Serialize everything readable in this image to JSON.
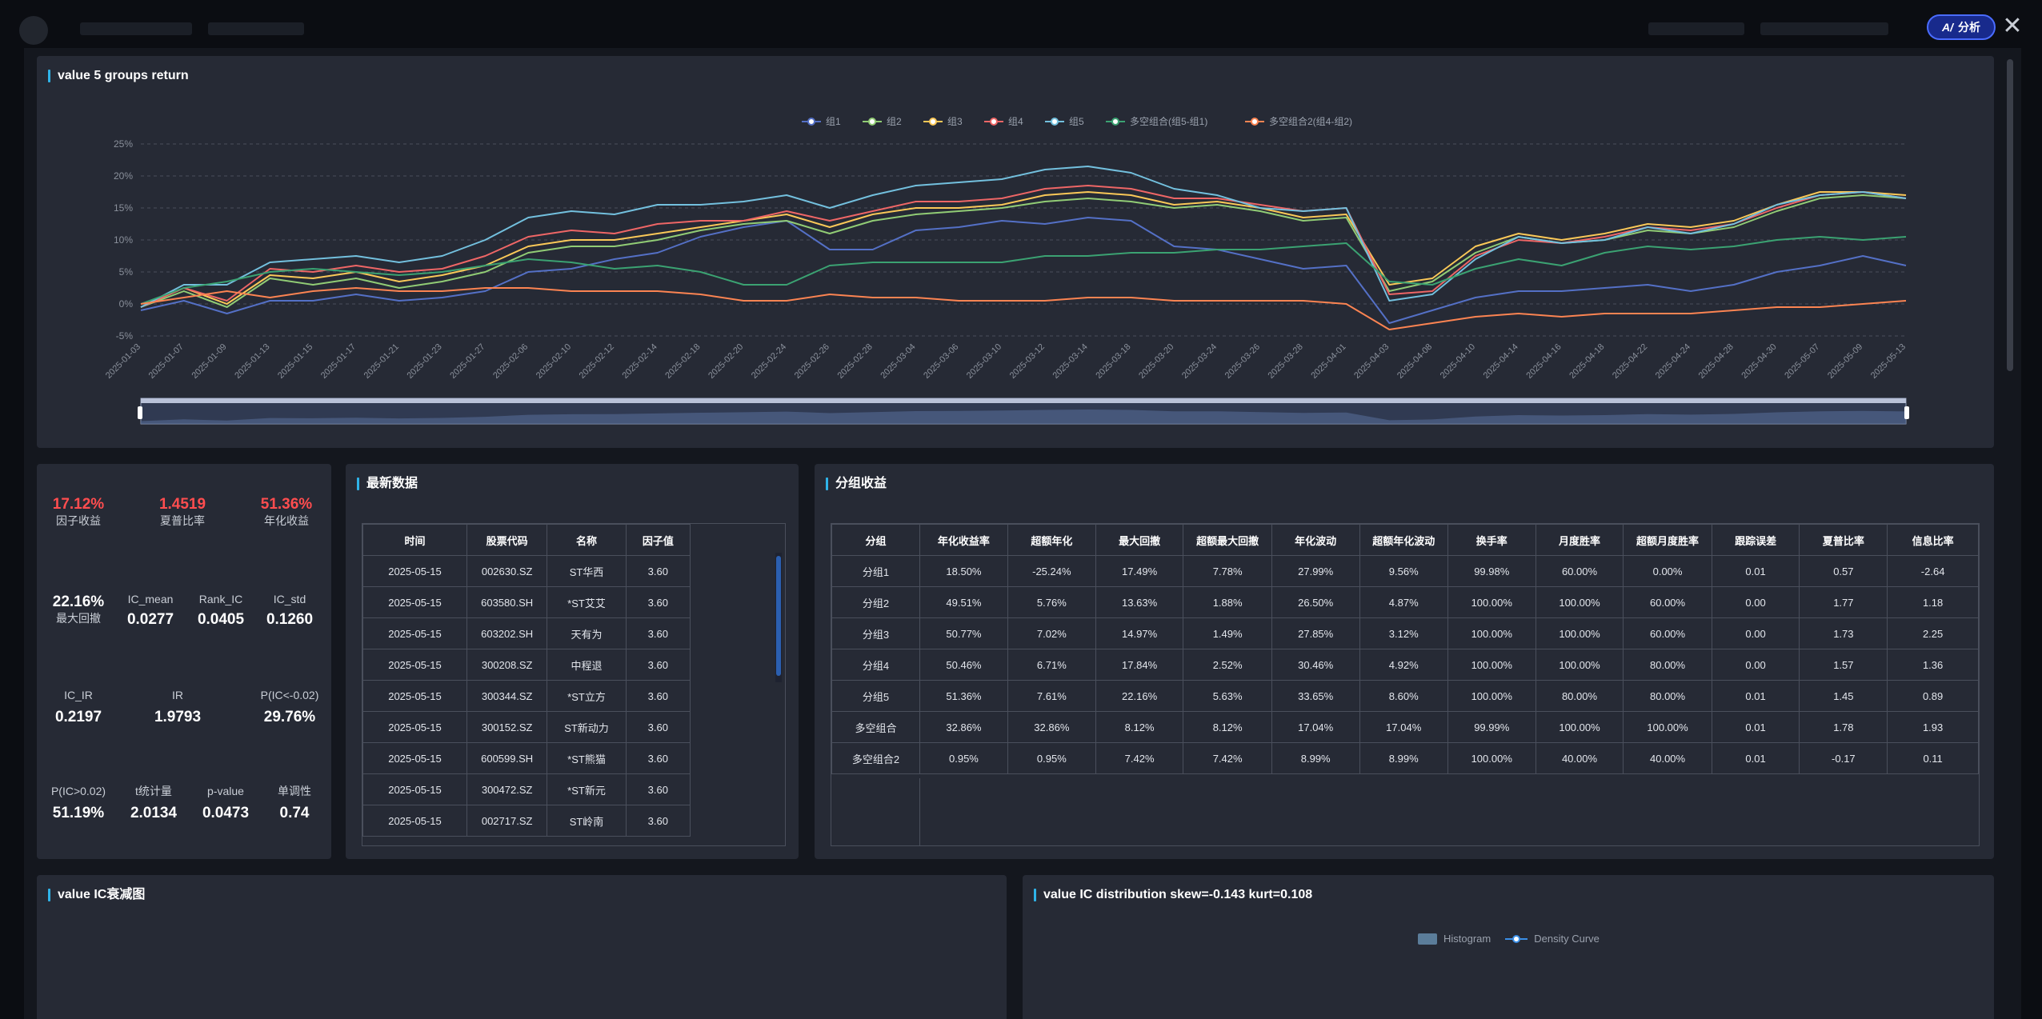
{
  "panels": {
    "chart_title": "value 5 groups return",
    "latest_title": "最新数据",
    "group_title": "分组收益",
    "decay_title": "value IC衰减图",
    "dist_title": "value IC distribution skew=-0.143 kurt=0.108"
  },
  "toolbar": {
    "ai_label": "分析",
    "ai_icon": "ai-icon",
    "close_icon": "close-icon"
  },
  "colors": {
    "accent": "#2fb3e8",
    "negative_stat": "#ff4d4f",
    "ai_button": "#182a8c"
  },
  "stats": {
    "top": [
      {
        "value": "17.12%",
        "label": "因子收益"
      },
      {
        "value": "1.4519",
        "label": "夏普比率"
      },
      {
        "value": "51.36%",
        "label": "年化收益"
      }
    ],
    "drawdown": {
      "value": "22.16%",
      "label": "最大回撤"
    },
    "row2": [
      {
        "label": "IC_mean",
        "value": "0.0277"
      },
      {
        "label": "Rank_IC",
        "value": "0.0405"
      },
      {
        "label": "IC_std",
        "value": "0.1260"
      }
    ],
    "row3": [
      {
        "label": "IC_IR",
        "value": "0.2197"
      },
      {
        "label": "IR",
        "value": "1.9793"
      },
      {
        "label": "P(IC<-0.02)",
        "value": "29.76%"
      }
    ],
    "row4": [
      {
        "label": "P(IC>0.02)",
        "value": "51.19%"
      },
      {
        "label": "t统计量",
        "value": "2.0134"
      },
      {
        "label": "p-value",
        "value": "0.0473"
      },
      {
        "label": "单调性",
        "value": "0.74"
      }
    ]
  },
  "latest": {
    "headers": [
      "时间",
      "股票代码",
      "名称",
      "因子值"
    ],
    "rows": [
      [
        "2025-05-15",
        "002630.SZ",
        "ST华西",
        "3.60"
      ],
      [
        "2025-05-15",
        "603580.SH",
        "*ST艾艾",
        "3.60"
      ],
      [
        "2025-05-15",
        "603202.SH",
        "天有为",
        "3.60"
      ],
      [
        "2025-05-15",
        "300208.SZ",
        "中程退",
        "3.60"
      ],
      [
        "2025-05-15",
        "300344.SZ",
        "*ST立方",
        "3.60"
      ],
      [
        "2025-05-15",
        "300152.SZ",
        "ST新动力",
        "3.60"
      ],
      [
        "2025-05-15",
        "600599.SH",
        "*ST熊猫",
        "3.60"
      ],
      [
        "2025-05-15",
        "300472.SZ",
        "*ST新元",
        "3.60"
      ],
      [
        "2025-05-15",
        "002717.SZ",
        "ST岭南",
        "3.60"
      ]
    ]
  },
  "groups": {
    "headers": [
      "分组",
      "年化收益率",
      "超额年化",
      "最大回撤",
      "超额最大回撤",
      "年化波动",
      "超额年化波动",
      "换手率",
      "月度胜率",
      "超额月度胜率",
      "跟踪误差",
      "夏普比率",
      "信息比率"
    ],
    "rows": [
      [
        "分组1",
        "18.50%",
        "-25.24%",
        "17.49%",
        "7.78%",
        "27.99%",
        "9.56%",
        "99.98%",
        "60.00%",
        "0.00%",
        "0.01",
        "0.57",
        "-2.64"
      ],
      [
        "分组2",
        "49.51%",
        "5.76%",
        "13.63%",
        "1.88%",
        "26.50%",
        "4.87%",
        "100.00%",
        "100.00%",
        "60.00%",
        "0.00",
        "1.77",
        "1.18"
      ],
      [
        "分组3",
        "50.77%",
        "7.02%",
        "14.97%",
        "1.49%",
        "27.85%",
        "3.12%",
        "100.00%",
        "100.00%",
        "60.00%",
        "0.00",
        "1.73",
        "2.25"
      ],
      [
        "分组4",
        "50.46%",
        "6.71%",
        "17.84%",
        "2.52%",
        "30.46%",
        "4.92%",
        "100.00%",
        "100.00%",
        "80.00%",
        "0.00",
        "1.57",
        "1.36"
      ],
      [
        "分组5",
        "51.36%",
        "7.61%",
        "22.16%",
        "5.63%",
        "33.65%",
        "8.60%",
        "100.00%",
        "80.00%",
        "80.00%",
        "0.01",
        "1.45",
        "0.89"
      ],
      [
        "多空组合",
        "32.86%",
        "32.86%",
        "8.12%",
        "8.12%",
        "17.04%",
        "17.04%",
        "99.99%",
        "100.00%",
        "100.00%",
        "0.01",
        "1.78",
        "1.93"
      ],
      [
        "多空组合2",
        "0.95%",
        "0.95%",
        "7.42%",
        "7.42%",
        "8.99%",
        "8.99%",
        "100.00%",
        "40.00%",
        "40.00%",
        "0.01",
        "-0.17",
        "0.11"
      ]
    ]
  },
  "dist_legend": [
    "Histogram",
    "Density Curve"
  ],
  "chart_data": {
    "type": "line",
    "title": "value 5 groups return",
    "y_ticks": [
      "25%",
      "20%",
      "15%",
      "10%",
      "5%",
      "0%",
      "-5%"
    ],
    "ylim": [
      -5,
      25
    ],
    "x_labels": [
      "2025-01-03",
      "2025-01-07",
      "2025-01-09",
      "2025-01-13",
      "2025-01-15",
      "2025-01-17",
      "2025-01-21",
      "2025-01-23",
      "2025-01-27",
      "2025-02-06",
      "2025-02-10",
      "2025-02-12",
      "2025-02-14",
      "2025-02-18",
      "2025-02-20",
      "2025-02-24",
      "2025-02-26",
      "2025-02-28",
      "2025-03-04",
      "2025-03-06",
      "2025-03-10",
      "2025-03-12",
      "2025-03-14",
      "2025-03-18",
      "2025-03-20",
      "2025-03-24",
      "2025-03-26",
      "2025-03-28",
      "2025-04-01",
      "2025-04-03",
      "2025-04-08",
      "2025-04-10",
      "2025-04-14",
      "2025-04-16",
      "2025-04-18",
      "2025-04-22",
      "2025-04-24",
      "2025-04-28",
      "2025-04-30",
      "2025-05-07",
      "2025-05-09",
      "2025-05-13"
    ],
    "legend_position": "top-center",
    "series": [
      {
        "name": "组1",
        "color": "#5470c6",
        "values": [
          -1,
          0.5,
          -1.5,
          0.5,
          0.5,
          1.5,
          0.5,
          1,
          2,
          5,
          5.5,
          7,
          8,
          10.5,
          12,
          13,
          8.5,
          8.5,
          11.5,
          12,
          13,
          12.5,
          13.5,
          13,
          9,
          8.5,
          7,
          5.5,
          6,
          -3,
          -1,
          1,
          2,
          2,
          2.5,
          3,
          2,
          3,
          5,
          6,
          7.5,
          6
        ]
      },
      {
        "name": "组2",
        "color": "#91cc75",
        "values": [
          -0.5,
          2,
          -0.5,
          4,
          3,
          4,
          2.5,
          3.5,
          5,
          8,
          9,
          9,
          10,
          11.5,
          12.5,
          13,
          11,
          13,
          14,
          14.5,
          15,
          16,
          16.5,
          16,
          15,
          15.5,
          14.5,
          13,
          13.5,
          2,
          3.5,
          8,
          10.5,
          9.5,
          10,
          11.5,
          11,
          12,
          14.5,
          16.5,
          17,
          16.5
        ]
      },
      {
        "name": "组3",
        "color": "#fac858",
        "values": [
          -0.5,
          2.5,
          0,
          4.5,
          4,
          5,
          3.5,
          4.5,
          6,
          9,
          10,
          10,
          11,
          12,
          13,
          14,
          12,
          14,
          15,
          15,
          15.5,
          17,
          17.5,
          17,
          15.5,
          16,
          15,
          13.5,
          14,
          3,
          4,
          9,
          11,
          10,
          11,
          12.5,
          12,
          13,
          15.5,
          17.5,
          17.5,
          17
        ]
      },
      {
        "name": "组4",
        "color": "#ee6666",
        "values": [
          -0.5,
          2.5,
          0.5,
          5.5,
          5,
          6,
          5,
          5.5,
          7.5,
          10.5,
          11.5,
          11,
          12.5,
          13,
          13,
          14.5,
          13,
          14.5,
          16,
          16,
          16.5,
          18,
          18.5,
          18,
          16.5,
          16.5,
          15.5,
          14.5,
          15,
          1.5,
          2,
          7.5,
          10,
          9.5,
          10.5,
          12,
          11.5,
          12.5,
          15,
          17,
          17.5,
          16.5
        ]
      },
      {
        "name": "组5",
        "color": "#73c0de",
        "values": [
          -0.5,
          3,
          3,
          6.5,
          7,
          7.5,
          6.5,
          7.5,
          10,
          13.5,
          14.5,
          14,
          15.5,
          15.5,
          16,
          17,
          15,
          17,
          18.5,
          19,
          19.5,
          21,
          21.5,
          20.5,
          18,
          17,
          15,
          14.5,
          15,
          0.5,
          1.5,
          7,
          10.5,
          9.5,
          10,
          12,
          11,
          12.5,
          15.5,
          17,
          17.5,
          16.5
        ]
      },
      {
        "name": "多空组合(组5-组1)",
        "color": "#3ba272",
        "values": [
          0,
          2.5,
          3.5,
          5,
          5.5,
          5,
          4.5,
          5,
          6,
          7,
          6.5,
          5.5,
          6,
          5,
          3,
          3,
          6,
          6.5,
          6.5,
          6.5,
          6.5,
          7.5,
          7.5,
          8,
          8,
          8.5,
          8.5,
          9,
          9.5,
          3.5,
          3,
          5.5,
          7,
          6,
          8,
          9,
          8.5,
          9,
          10,
          10.5,
          10,
          10.5
        ]
      },
      {
        "name": "多空组合2(组4-组2)",
        "color": "#fc8452",
        "values": [
          0,
          1,
          2,
          1,
          2,
          2.5,
          2,
          2,
          2.5,
          2.5,
          2,
          2,
          2,
          1.5,
          0.5,
          0.5,
          1.5,
          1,
          1,
          0.5,
          0.5,
          0.5,
          1,
          1,
          0.5,
          0.5,
          0.5,
          0.5,
          0,
          -4,
          -3,
          -2,
          -1.5,
          -2,
          -1.5,
          -1.5,
          -1.5,
          -1,
          -0.5,
          -0.5,
          0,
          0.5
        ]
      }
    ]
  }
}
